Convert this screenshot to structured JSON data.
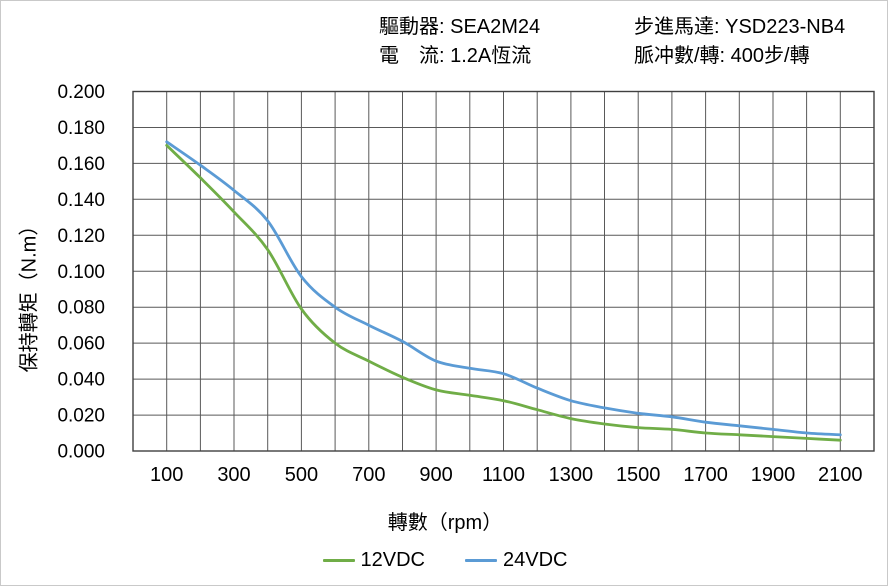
{
  "header": {
    "rows": [
      {
        "col1": "驅動器: SEA2M24",
        "col2": "步進馬達: YSD223-NB4"
      },
      {
        "col1": "電　流: 1.2A恆流",
        "col2": "脈冲數/轉: 400步/轉"
      }
    ]
  },
  "chart_data": {
    "type": "line",
    "title": "",
    "xlabel": "轉數（rpm）",
    "ylabel": "保持轉矩（N.m）",
    "x": [
      100,
      200,
      300,
      400,
      500,
      600,
      700,
      800,
      900,
      1000,
      1100,
      1200,
      1300,
      1400,
      1500,
      1600,
      1700,
      1800,
      1900,
      2000,
      2100
    ],
    "series": [
      {
        "name": "12VDC",
        "color": "#70AD47",
        "values": [
          0.17,
          0.152,
          0.133,
          0.112,
          0.079,
          0.06,
          0.05,
          0.041,
          0.034,
          0.031,
          0.028,
          0.023,
          0.018,
          0.015,
          0.013,
          0.012,
          0.01,
          0.009,
          0.008,
          0.007,
          0.006
        ]
      },
      {
        "name": "24VDC",
        "color": "#5B9BD5",
        "values": [
          0.172,
          0.159,
          0.145,
          0.128,
          0.097,
          0.08,
          0.07,
          0.061,
          0.05,
          0.046,
          0.043,
          0.035,
          0.028,
          0.024,
          0.021,
          0.019,
          0.016,
          0.014,
          0.012,
          0.01,
          0.009
        ]
      }
    ],
    "xlim": [
      0,
      2200
    ],
    "ylim": [
      0,
      0.2
    ],
    "x_grid_step": 100,
    "y_grid_step": 0.02,
    "x_ticks": [
      100,
      300,
      500,
      700,
      900,
      1100,
      1300,
      1500,
      1700,
      1900,
      2100
    ],
    "y_ticks": [
      "0.000",
      "0.020",
      "0.040",
      "0.060",
      "0.080",
      "0.100",
      "0.120",
      "0.140",
      "0.160",
      "0.180",
      "0.200"
    ],
    "grid": true,
    "legend_position": "bottom",
    "grid_color": "#595959",
    "frame_color": "#404040"
  }
}
